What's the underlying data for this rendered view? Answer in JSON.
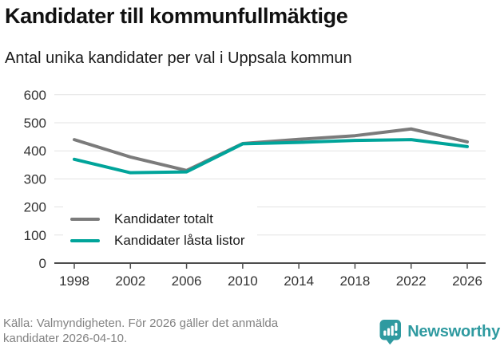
{
  "header": {
    "title": "Kandidater till kommunfullmäktige",
    "subtitle": "Antal unika kandidater per val i Uppsala kommun"
  },
  "chart_data": {
    "type": "line",
    "x": [
      1998,
      2002,
      2006,
      2010,
      2014,
      2018,
      2022,
      2026
    ],
    "xticks": [
      "1998",
      "2002",
      "2006",
      "2010",
      "2014",
      "2018",
      "2022",
      "2026"
    ],
    "yticks": [
      0,
      100,
      200,
      300,
      400,
      500,
      600
    ],
    "ylim": [
      0,
      600
    ],
    "grid": true,
    "legend_position": "inside-lower-left",
    "series": [
      {
        "name": "Kandidater totalt",
        "color": "#7b7b7b",
        "values": [
          440,
          378,
          330,
          426,
          441,
          454,
          478,
          432
        ]
      },
      {
        "name": "Kandidater låsta listor",
        "color": "#00a49a",
        "values": [
          370,
          322,
          325,
          425,
          430,
          437,
          440,
          415
        ]
      }
    ]
  },
  "footer": {
    "source_line1": "Källa: Valmyndigheten. För 2026 gäller det anmälda",
    "source_line2": "kandidater 2026-04-10.",
    "brand_name": "Newsworthy"
  },
  "colors": {
    "grid": "#e3e3e3",
    "axis": "#4d4d4d",
    "tick_label": "#333333",
    "source_text": "#828282",
    "brand": "#2f9aa0",
    "background": "#ffffff"
  }
}
